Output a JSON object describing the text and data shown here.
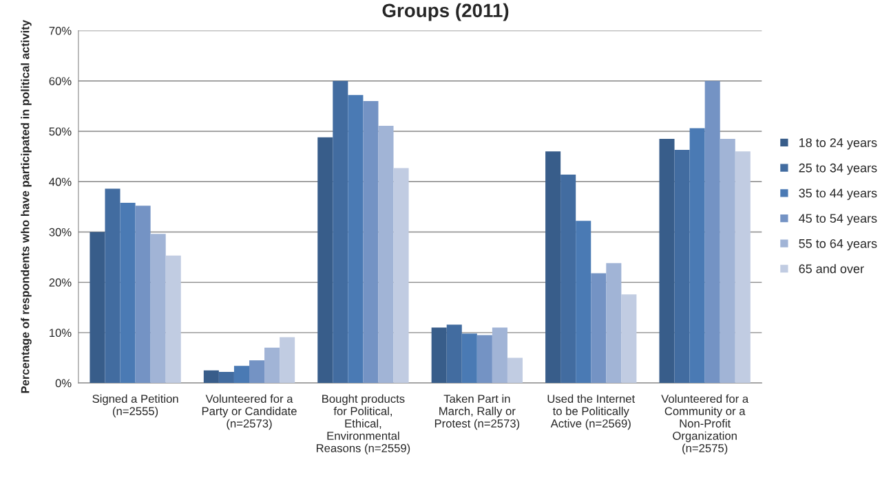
{
  "chart_data": {
    "type": "bar",
    "title": "Groups (2011)",
    "ylabel": "Percentage of respondents who have participated in political activity",
    "categories": [
      "Signed a Petition\n(n=2555)",
      "Volunteered for a\nParty or Candidate\n(n=2573)",
      "Bought products\nfor Political,\nEthical,\nEnvironmental\nReasons (n=2559)",
      "Taken Part in\nMarch, Rally or\nProtest (n=2573)",
      "Used the Internet\nto be Politically\nActive (n=2569)",
      "Volunteered for a\nCommunity or a\nNon-Profit\nOrganization\n(n=2575)"
    ],
    "series": [
      {
        "name": "18 to 24 years",
        "color": "#385d8a",
        "values": [
          30.0,
          2.5,
          48.8,
          11.0,
          46.0,
          48.5
        ]
      },
      {
        "name": "25 to 34 years",
        "color": "#426ca0",
        "values": [
          38.6,
          2.2,
          60.0,
          11.6,
          41.4,
          46.3
        ]
      },
      {
        "name": "35 to 44 years",
        "color": "#4a7ab4",
        "values": [
          35.8,
          3.4,
          57.2,
          9.8,
          32.2,
          50.6
        ]
      },
      {
        "name": "45 to 54 years",
        "color": "#7493c4",
        "values": [
          35.2,
          4.5,
          56.0,
          9.5,
          21.8,
          60.0
        ]
      },
      {
        "name": "55 to 64 years",
        "color": "#a1b4d6",
        "values": [
          29.6,
          7.0,
          51.1,
          11.0,
          23.8,
          48.5
        ]
      },
      {
        "name": "65 and over",
        "color": "#c1cce2",
        "values": [
          25.3,
          9.1,
          42.7,
          5.0,
          17.6,
          46.0
        ]
      }
    ],
    "ylim": [
      0,
      70
    ],
    "yticks": [
      {
        "value": 0,
        "label": "0%"
      },
      {
        "value": 10,
        "label": "10%"
      },
      {
        "value": 20,
        "label": "20%"
      },
      {
        "value": 30,
        "label": "30%"
      },
      {
        "value": 40,
        "label": "40%"
      },
      {
        "value": 50,
        "label": "50%"
      },
      {
        "value": 60,
        "label": "60%"
      },
      {
        "value": 70,
        "label": "70%"
      }
    ],
    "grid": "y",
    "legend": "right"
  }
}
